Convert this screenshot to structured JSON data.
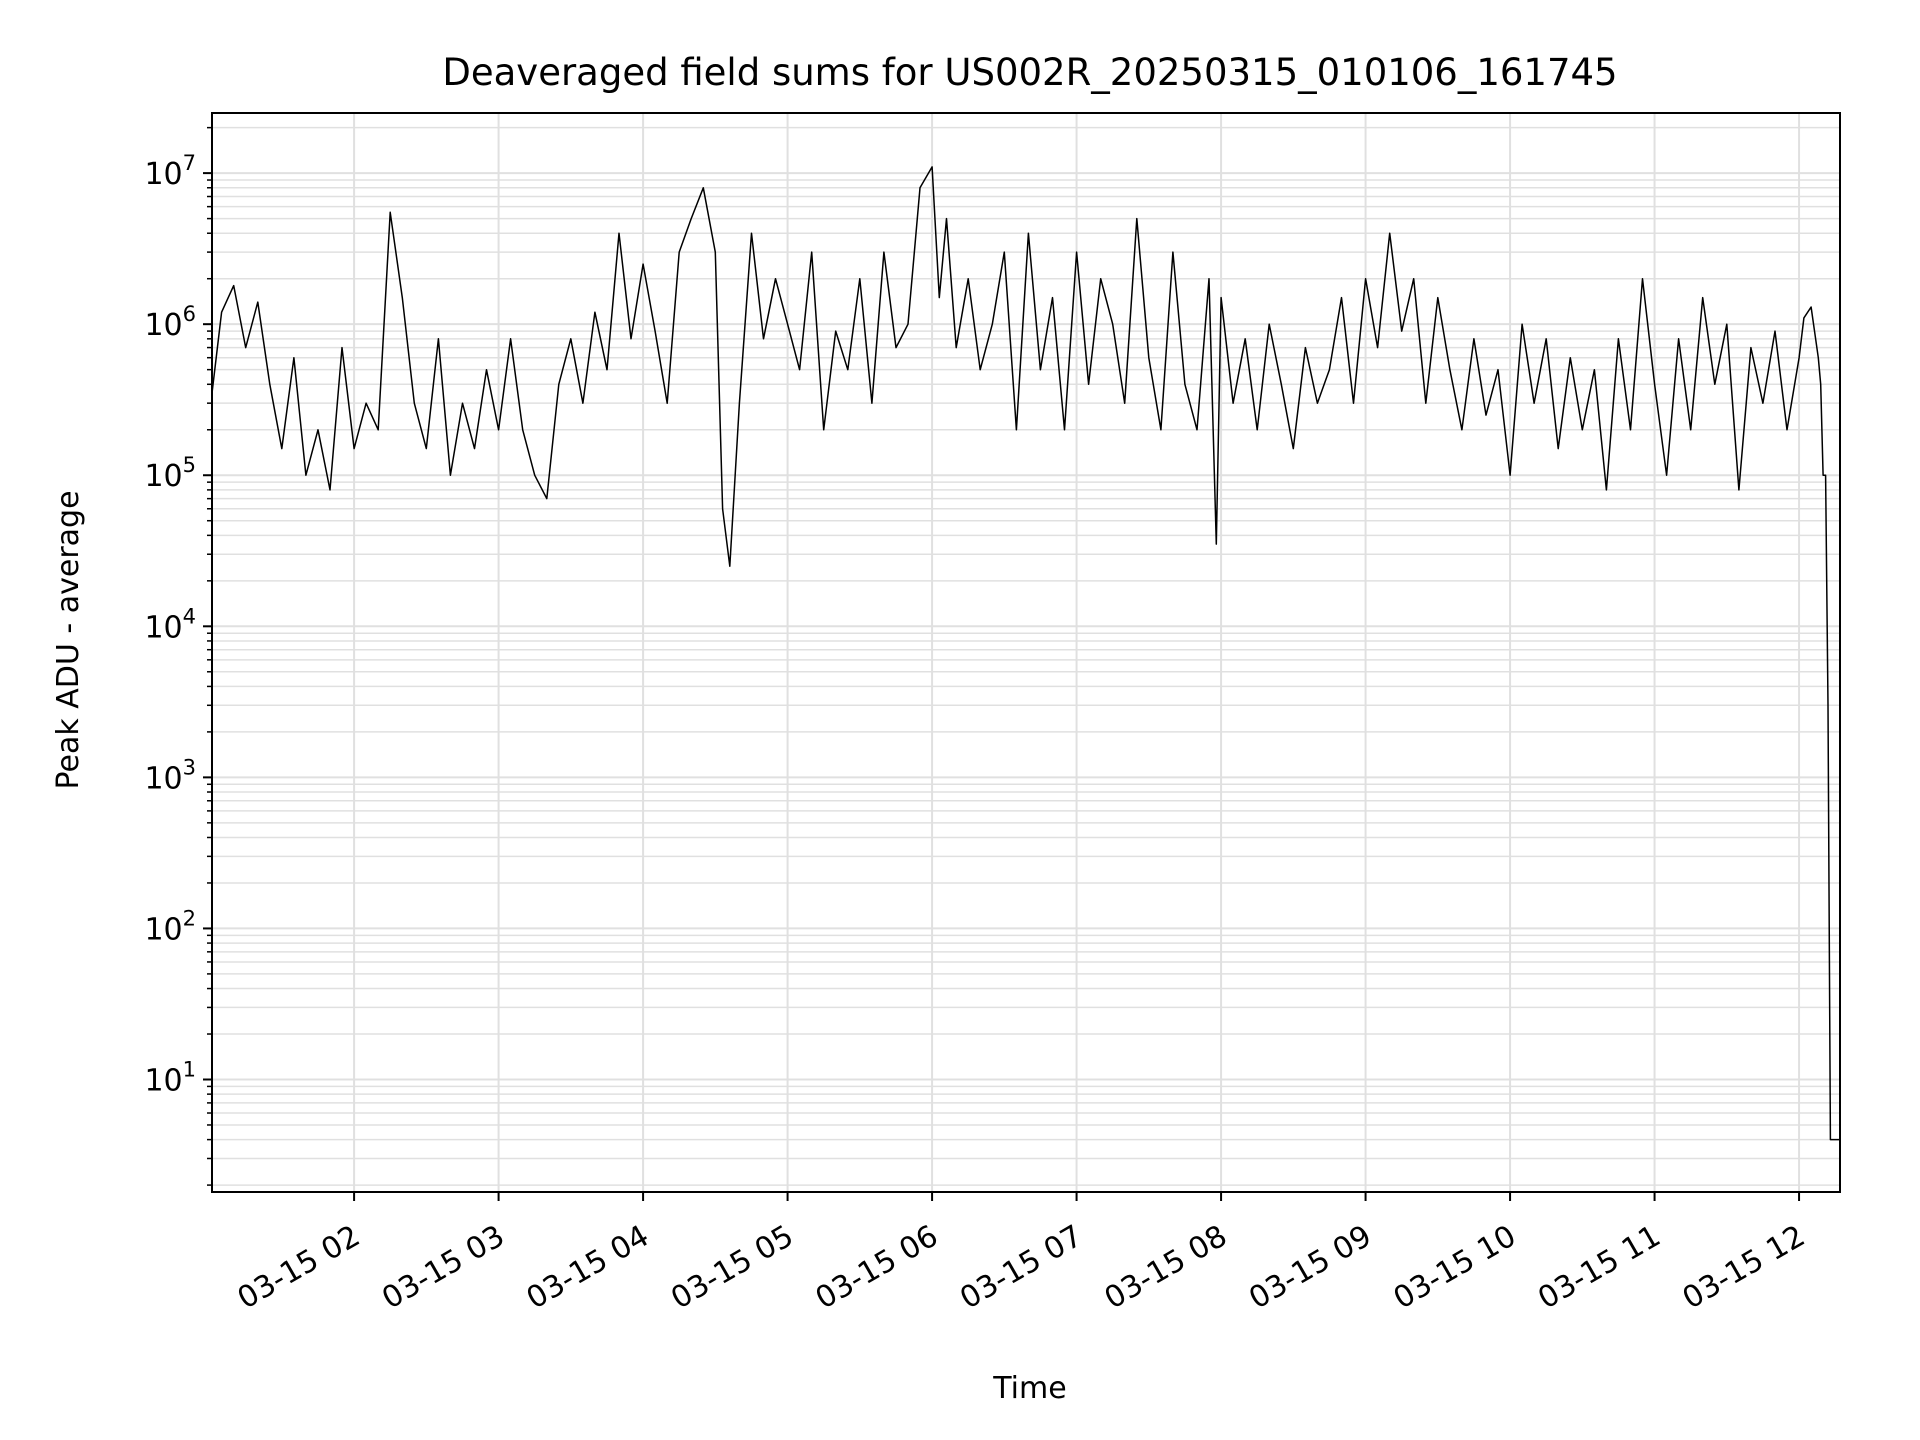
{
  "chart_data": {
    "type": "line",
    "title": "Deaveraged field sums for US002R_20250315_010106_161745",
    "xlabel": "Time",
    "ylabel": "Peak ADU - average",
    "yscale": "log",
    "grid": true,
    "line_color": "#000000",
    "grid_color": "#e0e0e0",
    "x_range": [
      "03-15 01:01",
      "03-15 12:17"
    ],
    "ylim": [
      1.8,
      25000000
    ],
    "x_ticks": [
      {
        "t": "03-15 02",
        "label": "03-15 02"
      },
      {
        "t": "03-15 03",
        "label": "03-15 03"
      },
      {
        "t": "03-15 04",
        "label": "03-15 04"
      },
      {
        "t": "03-15 05",
        "label": "03-15 05"
      },
      {
        "t": "03-15 06",
        "label": "03-15 06"
      },
      {
        "t": "03-15 07",
        "label": "03-15 07"
      },
      {
        "t": "03-15 08",
        "label": "03-15 08"
      },
      {
        "t": "03-15 09",
        "label": "03-15 09"
      },
      {
        "t": "03-15 10",
        "label": "03-15 10"
      },
      {
        "t": "03-15 11",
        "label": "03-15 11"
      },
      {
        "t": "03-15 12",
        "label": "03-15 12"
      }
    ],
    "y_ticks": [
      {
        "value": 10,
        "base": "10",
        "exp": "1"
      },
      {
        "value": 100,
        "base": "10",
        "exp": "2"
      },
      {
        "value": 1000,
        "base": "10",
        "exp": "3"
      },
      {
        "value": 10000,
        "base": "10",
        "exp": "4"
      },
      {
        "value": 100000,
        "base": "10",
        "exp": "5"
      },
      {
        "value": 1000000,
        "base": "10",
        "exp": "6"
      },
      {
        "value": 10000000,
        "base": "10",
        "exp": "7"
      }
    ],
    "series": [
      {
        "x": [
          "03-15 01:01",
          "03-15 01:05",
          "03-15 01:10",
          "03-15 01:15",
          "03-15 01:20",
          "03-15 01:25",
          "03-15 01:30",
          "03-15 01:35",
          "03-15 01:40",
          "03-15 01:45",
          "03-15 01:50",
          "03-15 01:55",
          "03-15 02:00",
          "03-15 02:05",
          "03-15 02:10",
          "03-15 02:15",
          "03-15 02:20",
          "03-15 02:25",
          "03-15 02:30",
          "03-15 02:35",
          "03-15 02:40",
          "03-15 02:45",
          "03-15 02:50",
          "03-15 02:55",
          "03-15 03:00",
          "03-15 03:05",
          "03-15 03:10",
          "03-15 03:15",
          "03-15 03:20",
          "03-15 03:25",
          "03-15 03:30",
          "03-15 03:35",
          "03-15 03:40",
          "03-15 03:45",
          "03-15 03:50",
          "03-15 03:55",
          "03-15 04:00",
          "03-15 04:05",
          "03-15 04:10",
          "03-15 04:15",
          "03-15 04:20",
          "03-15 04:25",
          "03-15 04:30",
          "03-15 04:33",
          "03-15 04:36",
          "03-15 04:40",
          "03-15 04:45",
          "03-15 04:50",
          "03-15 04:55",
          "03-15 05:00",
          "03-15 05:05",
          "03-15 05:10",
          "03-15 05:15",
          "03-15 05:20",
          "03-15 05:25",
          "03-15 05:30",
          "03-15 05:35",
          "03-15 05:40",
          "03-15 05:45",
          "03-15 05:50",
          "03-15 05:55",
          "03-15 06:00",
          "03-15 06:03",
          "03-15 06:06",
          "03-15 06:10",
          "03-15 06:15",
          "03-15 06:20",
          "03-15 06:25",
          "03-15 06:30",
          "03-15 06:35",
          "03-15 06:40",
          "03-15 06:45",
          "03-15 06:50",
          "03-15 06:55",
          "03-15 07:00",
          "03-15 07:05",
          "03-15 07:10",
          "03-15 07:15",
          "03-15 07:20",
          "03-15 07:25",
          "03-15 07:30",
          "03-15 07:35",
          "03-15 07:40",
          "03-15 07:45",
          "03-15 07:50",
          "03-15 07:55",
          "03-15 07:58",
          "03-15 08:00",
          "03-15 08:05",
          "03-15 08:10",
          "03-15 08:15",
          "03-15 08:20",
          "03-15 08:25",
          "03-15 08:30",
          "03-15 08:35",
          "03-15 08:40",
          "03-15 08:45",
          "03-15 08:50",
          "03-15 08:55",
          "03-15 09:00",
          "03-15 09:05",
          "03-15 09:10",
          "03-15 09:15",
          "03-15 09:20",
          "03-15 09:25",
          "03-15 09:30",
          "03-15 09:35",
          "03-15 09:40",
          "03-15 09:45",
          "03-15 09:50",
          "03-15 09:55",
          "03-15 10:00",
          "03-15 10:05",
          "03-15 10:10",
          "03-15 10:15",
          "03-15 10:20",
          "03-15 10:25",
          "03-15 10:30",
          "03-15 10:35",
          "03-15 10:40",
          "03-15 10:45",
          "03-15 10:50",
          "03-15 10:55",
          "03-15 11:00",
          "03-15 11:05",
          "03-15 11:10",
          "03-15 11:15",
          "03-15 11:20",
          "03-15 11:25",
          "03-15 11:30",
          "03-15 11:35",
          "03-15 11:40",
          "03-15 11:45",
          "03-15 11:50",
          "03-15 11:55",
          "03-15 12:00",
          "03-15 12:02",
          "03-15 12:05",
          "03-15 12:08",
          "03-15 12:09",
          "03-15 12:10",
          "03-15 12:11",
          "03-15 12:12",
          "03-15 12:13",
          "03-15 12:14",
          "03-15 12:15",
          "03-15 12:17"
        ],
        "y": [
          350000,
          1200000,
          1800000,
          700000,
          1400000,
          400000,
          150000,
          600000,
          100000,
          200000,
          80000,
          700000,
          150000,
          300000,
          200000,
          5500000,
          1500000,
          300000,
          150000,
          800000,
          100000,
          300000,
          150000,
          500000,
          200000,
          800000,
          200000,
          100000,
          70000,
          400000,
          800000,
          300000,
          1200000,
          500000,
          4000000,
          800000,
          2500000,
          900000,
          300000,
          3000000,
          5000000,
          8000000,
          3000000,
          60000,
          25000,
          300000,
          4000000,
          800000,
          2000000,
          1000000,
          500000,
          3000000,
          200000,
          900000,
          500000,
          2000000,
          300000,
          3000000,
          700000,
          1000000,
          8000000,
          11000000,
          1500000,
          5000000,
          700000,
          2000000,
          500000,
          1000000,
          3000000,
          200000,
          4000000,
          500000,
          1500000,
          200000,
          3000000,
          400000,
          2000000,
          1000000,
          300000,
          5000000,
          600000,
          200000,
          3000000,
          400000,
          200000,
          2000000,
          35000,
          1500000,
          300000,
          800000,
          200000,
          1000000,
          400000,
          150000,
          700000,
          300000,
          500000,
          1500000,
          300000,
          2000000,
          700000,
          4000000,
          900000,
          2000000,
          300000,
          1500000,
          500000,
          200000,
          800000,
          250000,
          500000,
          100000,
          1000000,
          300000,
          800000,
          150000,
          600000,
          200000,
          500000,
          80000,
          800000,
          200000,
          2000000,
          400000,
          100000,
          800000,
          200000,
          1500000,
          400000,
          1000000,
          80000,
          700000,
          300000,
          900000,
          200000,
          600000,
          1100000,
          1300000,
          600000,
          400000,
          100000,
          100000,
          3000,
          4,
          4,
          4,
          4
        ]
      }
    ]
  }
}
